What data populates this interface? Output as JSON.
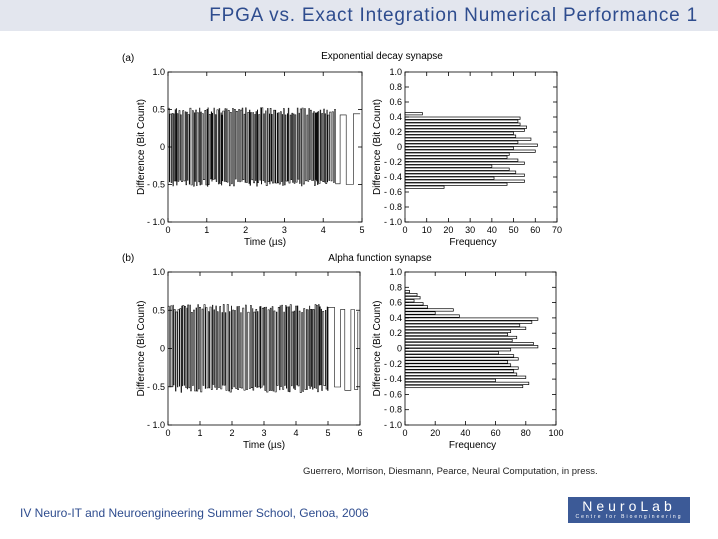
{
  "slide": {
    "title": "FPGA vs. Exact Integration Numerical Performance 1",
    "citation": "Guerrero, Morrison, Diesmann, Pearce, Neural Computation, in press.",
    "footer": "IV Neuro-IT and Neuroengineering Summer School, Genoa, 2006",
    "logo_name": "NeuroLab",
    "logo_sub": "Centre for Bioengineering"
  },
  "chart_data": [
    {
      "panel": "(a)",
      "type": "line",
      "title": "Exponential decay synapse",
      "xlabel": "Time (µs)",
      "ylabel": "Difference (Bit Count)",
      "xlim": [
        0,
        5
      ],
      "ylim": [
        -1.0,
        1.0
      ],
      "x_ticks": [
        "0",
        "1",
        "2",
        "3",
        "4",
        "5"
      ],
      "y_ticks": [
        "1.0",
        "0.5",
        "0",
        "- 0.5",
        "- 1.0"
      ],
      "signal": {
        "x_start": 0,
        "x_dense_end": 4.3,
        "x_sparse_end": 4.95,
        "amplitude": 0.5
      }
    },
    {
      "panel": "(a)",
      "type": "bar",
      "orientation": "horizontal",
      "xlabel": "Frequency",
      "ylabel": "Difference (Bit Count)",
      "xlim": [
        0,
        70
      ],
      "ylim": [
        -1.0,
        1.0
      ],
      "x_ticks": [
        "0",
        "10",
        "20",
        "30",
        "40",
        "50",
        "60",
        "70"
      ],
      "y_ticks": [
        "1.0",
        "0.8",
        "0.6",
        "0.4",
        "0.2",
        "0",
        "- 0.2",
        "- 0.4",
        "- 0.6",
        "- 0.8",
        "- 1.0"
      ],
      "bins": [
        0.44,
        0.38,
        0.34,
        0.3,
        0.26,
        0.22,
        0.18,
        0.14,
        0.1,
        0.06,
        0.02,
        -0.02,
        -0.06,
        -0.1,
        -0.14,
        -0.18,
        -0.22,
        -0.26,
        -0.3,
        -0.34,
        -0.38,
        -0.42,
        -0.46,
        -0.5,
        -0.54
      ],
      "values": [
        8,
        53,
        52,
        53,
        56,
        55,
        50,
        51,
        58,
        52,
        61,
        50,
        60,
        48,
        47,
        52,
        55,
        40,
        48,
        51,
        55,
        41,
        55,
        47,
        18
      ]
    },
    {
      "panel": "(b)",
      "type": "line",
      "title": "Alpha function synapse",
      "xlabel": "Time (µs)",
      "ylabel": "Difference (Bit Count)",
      "xlim": [
        0,
        6
      ],
      "ylim": [
        -1.0,
        1.0
      ],
      "x_ticks": [
        "0",
        "1",
        "2",
        "3",
        "4",
        "5",
        "6"
      ],
      "y_ticks": [
        "1.0",
        "0.5",
        "0",
        "- 0.5",
        "- 1.0"
      ],
      "signal": {
        "x_start": 0,
        "x_dense_end": 5.0,
        "x_sparse_end": 5.95,
        "amplitude": 0.55
      }
    },
    {
      "panel": "(b)",
      "type": "bar",
      "orientation": "horizontal",
      "xlabel": "Frequency",
      "ylabel": "Difference (Bit Count)",
      "xlim": [
        0,
        100
      ],
      "ylim": [
        -1.0,
        1.0
      ],
      "x_ticks": [
        "0",
        "20",
        "40",
        "60",
        "80",
        "100"
      ],
      "y_ticks": [
        "1.0",
        "0.8",
        "0.6",
        "0.4",
        "0.2",
        "0",
        "- 0.2",
        "- 0.4",
        "- 0.6",
        "- 0.8",
        "- 1.0"
      ],
      "bins": [
        0.74,
        0.7,
        0.66,
        0.62,
        0.58,
        0.54,
        0.5,
        0.46,
        0.42,
        0.38,
        0.34,
        0.3,
        0.26,
        0.22,
        0.18,
        0.14,
        0.1,
        0.06,
        0.02,
        -0.02,
        -0.06,
        -0.1,
        -0.14,
        -0.18,
        -0.22,
        -0.26,
        -0.3,
        -0.34,
        -0.38,
        -0.42,
        -0.46,
        -0.5
      ],
      "values": [
        3,
        8,
        10,
        6,
        12,
        15,
        32,
        20,
        36,
        88,
        84,
        76,
        80,
        70,
        68,
        74,
        71,
        85,
        88,
        70,
        62,
        72,
        75,
        68,
        70,
        75,
        72,
        74,
        80,
        60,
        82,
        78
      ]
    }
  ]
}
